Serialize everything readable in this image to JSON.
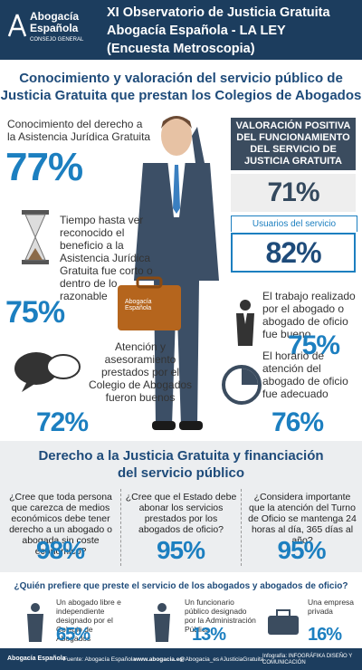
{
  "header": {
    "logo": [
      "Abogacía",
      "Española",
      "CONSEJO GENERAL"
    ],
    "title": [
      "XI Observatorio de Justicia Gratuita",
      "Abogacía Española - LA LEY",
      "(Encuesta Metroscopia)"
    ]
  },
  "section1": {
    "title": [
      "Conocimiento y valoración del servicio público de",
      "Justicia Gratuita  que prestan los Colegios de Abogados"
    ],
    "stats": [
      {
        "label": "Conocimiento del derecho a la Asistencia Jurídica Gratuita",
        "value": "77%"
      },
      {
        "label": "Tiempo hasta ver reconocido el beneficio a la Asistencia Jurídica Gratuita fue corto o dentro de lo razonable",
        "value": "75%"
      },
      {
        "label": "Atención y asesoramiento prestados por el Colegio de Abogados fueron buenos",
        "value": "72%"
      },
      {
        "label": "El trabajo realizado por el abogado o abogado de oficio fue bueno",
        "value": "75%"
      },
      {
        "label": "El horario de atención del abogado de oficio fue adecuado",
        "value": "76%"
      }
    ],
    "panel": {
      "title": "VALORACIÓN POSITIVA DEL FUNCIONAMIENTO DEL SERVICIO DE JUSTICIA GRATUITA",
      "value": "71%",
      "sub_label": "Usuarios del servicio",
      "sub_value": "82%"
    },
    "briefcase": "Abogacía Española"
  },
  "section2": {
    "title": [
      "Derecho a la Justicia Gratuita y financiación",
      "del servicio público"
    ],
    "questions": [
      {
        "text": "¿Cree que toda persona que carezca de medios económicos debe tener derecho a un abogado o abogada sin coste económico?",
        "value": "98%"
      },
      {
        "text": "¿Cree que el Estado debe abonar los servicios prestados por los abogados de oficio?",
        "value": "95%"
      },
      {
        "text": "¿Considera importante que la atención del Turno de Oficio se mantenga 24 horas al día, 365 días al año?",
        "value": "95%"
      }
    ]
  },
  "section3": {
    "title": "¿Quién prefiere que preste el servicio de los abogados y abogados de oficio?",
    "options": [
      {
        "text": "Un abogado libre e independiente designado por el Colegio de Abogados",
        "value": "65%"
      },
      {
        "text": "Un funcionario público designado por la Administración Pública",
        "value": "13%"
      },
      {
        "text": "Una empresa privada",
        "value": "16%"
      }
    ]
  },
  "footer": {
    "logo": "Abogacía Española",
    "source": "Fuente: Abogacía Española",
    "web": "www.abogacia.es",
    "twitter": "@Abogacia_es",
    "hashtag": "#JusticiaGratuita",
    "credit": "Infografía: INFOGRÁFIKA DISEÑO Y COMUNICACIÓN"
  }
}
